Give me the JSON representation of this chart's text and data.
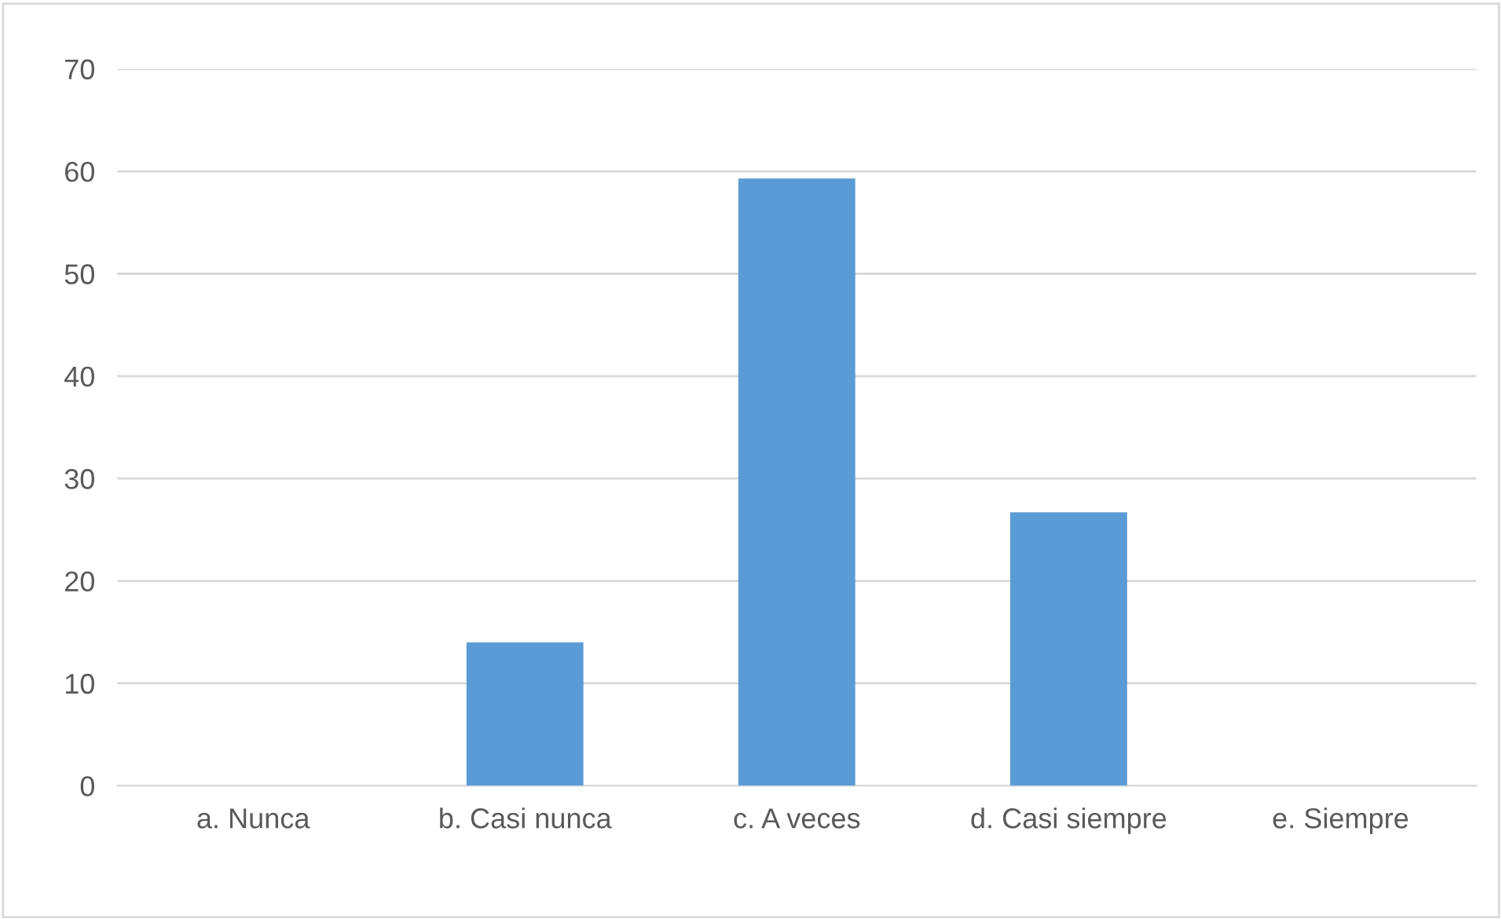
{
  "chart_data": {
    "type": "bar",
    "categories": [
      "a. Nunca",
      "b. Casi nunca",
      "c. A veces",
      "d. Casi siempre",
      "e. Siempre"
    ],
    "values": [
      0,
      14,
      59.3,
      26.7,
      0
    ],
    "color": "#5b9bd5",
    "ylim": [
      0,
      70
    ],
    "yticks": [
      0,
      10,
      20,
      30,
      40,
      50,
      60,
      70
    ],
    "grid": "y",
    "legend": false
  }
}
